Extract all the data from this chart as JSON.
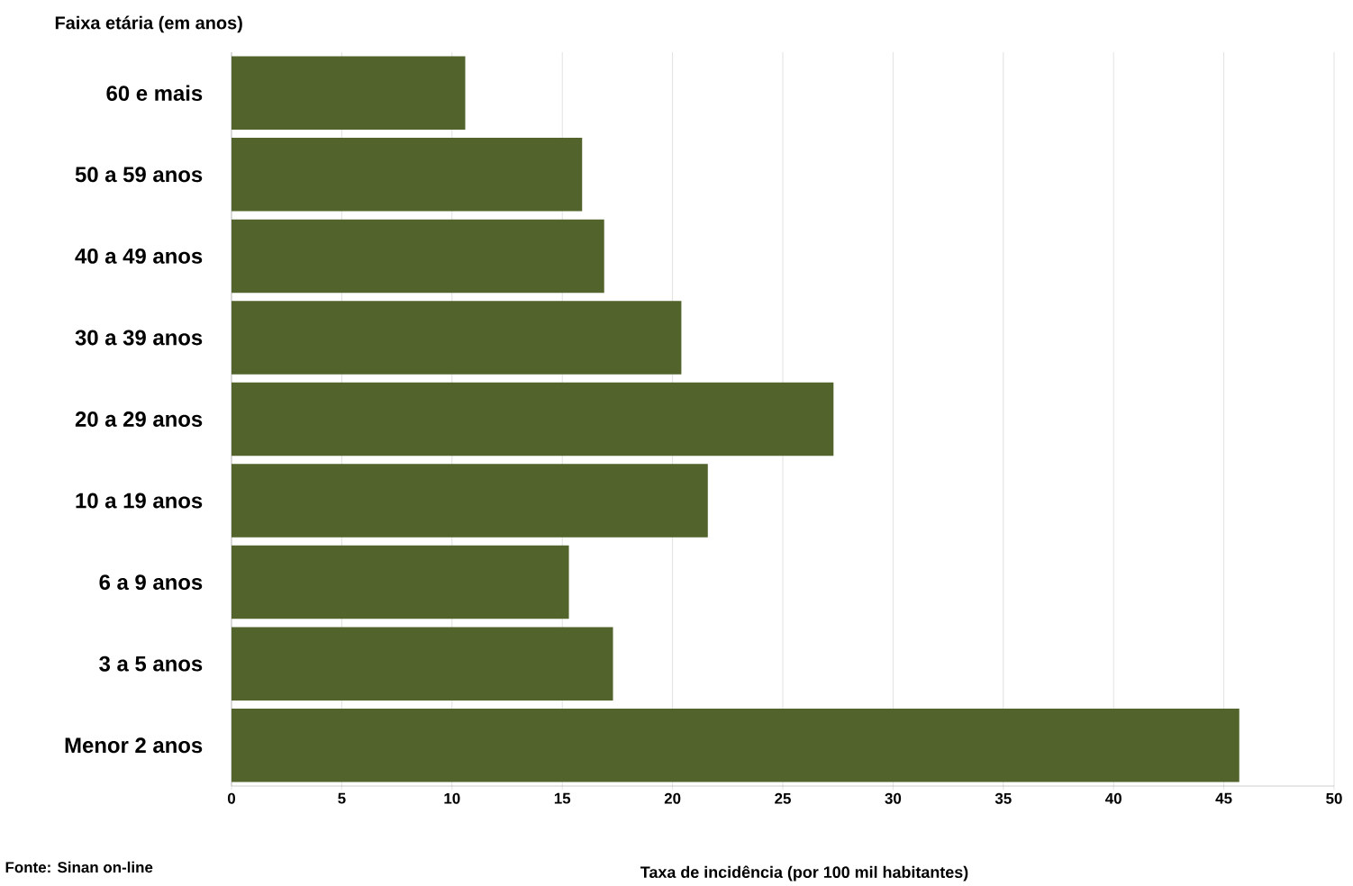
{
  "chart_data": {
    "type": "bar",
    "orientation": "horizontal",
    "ylabel": "Faixa etária (em anos)",
    "xlabel": "Taxa de incidência (por 100 mil habitantes)",
    "annotations": [
      "Fonte: Sinan on-line"
    ],
    "categories": [
      "60 e mais",
      "50 a 59 anos",
      "40 a 49 anos",
      "30 a 39 anos",
      "20 a 29 anos",
      "10 a 19 anos",
      "6 a 9 anos",
      "3 a 5 anos",
      "Menor 2 anos"
    ],
    "values": [
      10.6,
      15.9,
      16.9,
      20.4,
      27.3,
      21.6,
      15.3,
      17.3,
      45.7
    ],
    "color": "#52632b",
    "xlim": [
      0,
      50
    ],
    "xticks": [
      0,
      5,
      10,
      15,
      20,
      25,
      30,
      35,
      40,
      45,
      50
    ],
    "grid": "x"
  }
}
